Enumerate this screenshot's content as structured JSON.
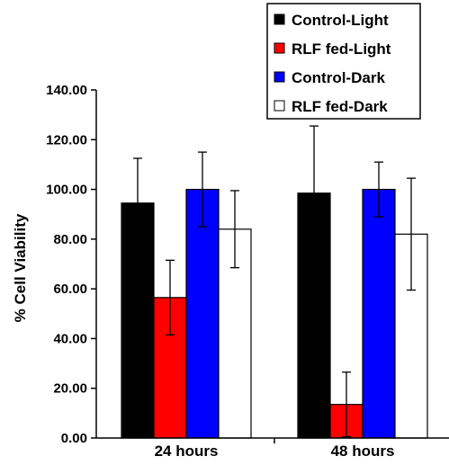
{
  "chart_data": {
    "type": "bar",
    "title": "",
    "xlabel": "",
    "ylabel": "% Cell Viability",
    "categories": [
      "24 hours",
      "48 hours"
    ],
    "ylim": [
      0,
      140
    ],
    "yticks": [
      "0.00",
      "20.00",
      "40.00",
      "60.00",
      "80.00",
      "100.00",
      "120.00",
      "140.00"
    ],
    "grid": false,
    "legend_position": "top-right",
    "series": [
      {
        "name": "Control-Light",
        "color": "#000000",
        "values": [
          94.5,
          98.5
        ],
        "errors": [
          18,
          27
        ]
      },
      {
        "name": "RLF fed-Light",
        "color": "#ff0000",
        "values": [
          56.5,
          13.5
        ],
        "errors": [
          15,
          13
        ]
      },
      {
        "name": "Control-Dark",
        "color": "#0000ff",
        "values": [
          100,
          100
        ],
        "errors": [
          15,
          11
        ]
      },
      {
        "name": "RLF fed-Dark",
        "color": "#ffffff",
        "values": [
          84,
          82
        ],
        "errors": [
          15.5,
          22.5
        ]
      }
    ]
  }
}
